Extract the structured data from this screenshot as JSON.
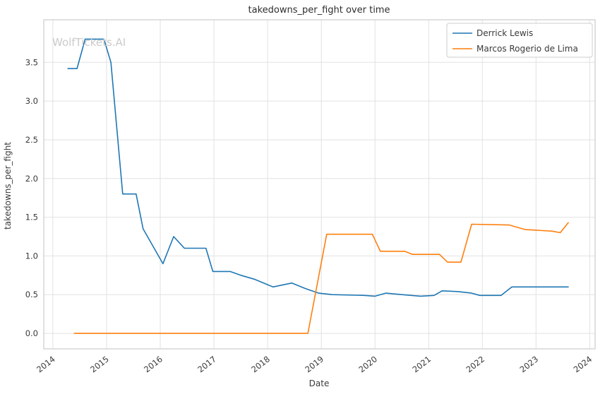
{
  "watermark": "WolfTickets.AI",
  "chart_data": {
    "type": "line",
    "title": "takedowns_per_fight over time",
    "xlabel": "Date",
    "ylabel": "takedowns_per_fight",
    "xlim": [
      2013.83,
      2024.1
    ],
    "ylim": [
      -0.2,
      4.05
    ],
    "xticks": [
      2014,
      2015,
      2016,
      2017,
      2018,
      2019,
      2020,
      2021,
      2022,
      2023,
      2024
    ],
    "yticks": [
      0.0,
      0.5,
      1.0,
      1.5,
      2.0,
      2.5,
      3.0,
      3.5
    ],
    "grid": true,
    "legend_position": "upper-right",
    "series": [
      {
        "name": "Derrick Lewis",
        "color": "#1f77b4",
        "x": [
          2014.28,
          2014.45,
          2014.6,
          2014.95,
          2015.08,
          2015.3,
          2015.55,
          2015.68,
          2016.05,
          2016.25,
          2016.45,
          2016.85,
          2016.98,
          2017.3,
          2017.5,
          2017.75,
          2018.1,
          2018.45,
          2018.7,
          2018.95,
          2019.2,
          2019.8,
          2020.0,
          2020.2,
          2020.5,
          2020.85,
          2021.1,
          2021.25,
          2021.55,
          2021.8,
          2021.95,
          2022.35,
          2022.55,
          2023.6
        ],
        "y": [
          3.42,
          3.42,
          3.8,
          3.8,
          3.5,
          1.8,
          1.8,
          1.35,
          0.9,
          1.25,
          1.1,
          1.1,
          0.8,
          0.8,
          0.75,
          0.7,
          0.6,
          0.65,
          0.58,
          0.52,
          0.5,
          0.49,
          0.48,
          0.52,
          0.5,
          0.48,
          0.49,
          0.55,
          0.54,
          0.52,
          0.49,
          0.49,
          0.6,
          0.6
        ]
      },
      {
        "name": "Marcos Rogerio de Lima",
        "color": "#ff7f0e",
        "x": [
          2014.4,
          2018.75,
          2019.1,
          2019.95,
          2020.1,
          2020.55,
          2020.7,
          2021.2,
          2021.35,
          2021.6,
          2021.8,
          2022.5,
          2022.8,
          2023.3,
          2023.45,
          2023.6
        ],
        "y": [
          0.0,
          0.0,
          1.28,
          1.28,
          1.06,
          1.06,
          1.02,
          1.02,
          0.92,
          0.92,
          1.41,
          1.4,
          1.34,
          1.32,
          1.3,
          1.43
        ]
      }
    ]
  }
}
